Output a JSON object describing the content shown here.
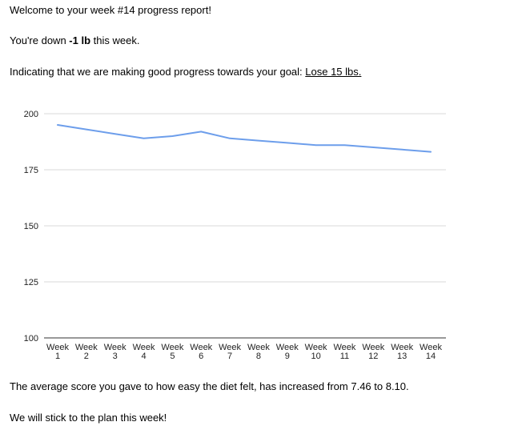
{
  "report": {
    "greeting": "Welcome to your week #14 progress report!",
    "change_prefix": "You're down ",
    "change_value": "-1 lb",
    "change_suffix": " this week.",
    "progress_prefix": "Indicating that we are making good progress towards your goal: ",
    "goal_text": "Lose 15 lbs.",
    "ease_summary": "The average score you gave to how easy the diet felt, has increased from 7.46 to 8.10.",
    "closing": "We will stick to the plan this week!"
  },
  "colors": {
    "line": "#6d9eeb",
    "grid": "#d9d9d9",
    "axis_text": "#222222"
  },
  "chart_data": {
    "type": "line",
    "x": [
      "Week 1",
      "Week 2",
      "Week 3",
      "Week 4",
      "Week 5",
      "Week 6",
      "Week 7",
      "Week 8",
      "Week 9",
      "Week 10",
      "Week 11",
      "Week 12",
      "Week 13",
      "Week 14"
    ],
    "series": [
      {
        "values": [
          195,
          193,
          191,
          189,
          190,
          192,
          189,
          188,
          187,
          186,
          186,
          185,
          184,
          183
        ]
      }
    ],
    "yticks": [
      100,
      125,
      150,
      175,
      200
    ],
    "ylim": [
      100,
      200
    ],
    "grid": true,
    "legend": "none"
  }
}
